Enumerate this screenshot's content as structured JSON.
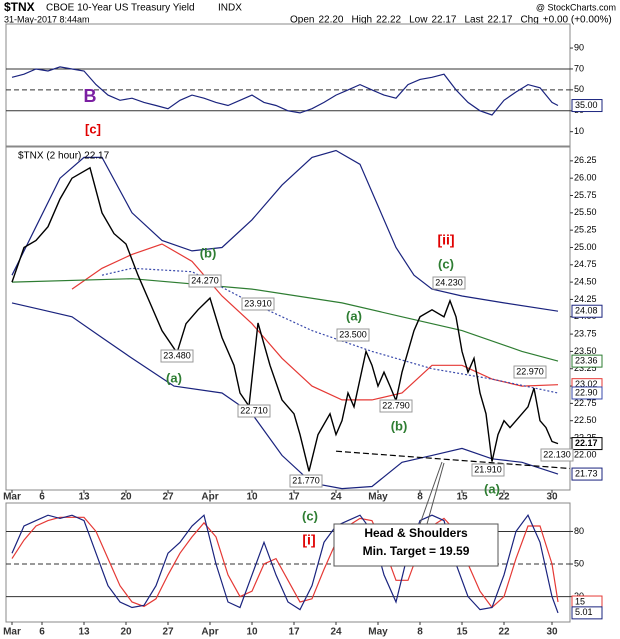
{
  "header": {
    "symbol": "$TNX",
    "name": "CBOE 10-Year US Treasury Yield",
    "exchange": "INDX",
    "brand": "@ StockCharts.com",
    "date": "31-May-2017 8:44am",
    "stats": [
      {
        "label": "Open",
        "value": "22.20"
      },
      {
        "label": "High",
        "value": "22.22"
      },
      {
        "label": "Low",
        "value": "22.17"
      },
      {
        "label": "Last",
        "value": "22.17"
      },
      {
        "label": "Chg",
        "value": "+0.00 (+0.00%)"
      }
    ]
  },
  "chart_data": [
    {
      "type": "line",
      "xlim": [
        -1,
        93
      ],
      "ylim": [
        -3.7,
        113
      ],
      "yticks": [
        10,
        30,
        50,
        70,
        90
      ],
      "reference_lines": [
        {
          "value": 70
        },
        {
          "value": 50,
          "dashed": true
        },
        {
          "value": 30
        }
      ],
      "series": [
        {
          "color": "#1a237e",
          "last_label": "35.00",
          "x": [
            0,
            2,
            4,
            6,
            8,
            10,
            12,
            14,
            16,
            18,
            20,
            22,
            24,
            26,
            28,
            30,
            32,
            34,
            36,
            38,
            40,
            42,
            44,
            46,
            48,
            50,
            52,
            54,
            56,
            58,
            60,
            62,
            64,
            66,
            68,
            70,
            72,
            74,
            76,
            78,
            80,
            82,
            84,
            86,
            88,
            90,
            91
          ],
          "values": [
            62,
            65,
            70,
            68,
            72,
            70,
            68,
            55,
            45,
            40,
            42,
            38,
            35,
            32,
            40,
            45,
            42,
            38,
            35,
            40,
            45,
            38,
            35,
            30,
            28,
            32,
            38,
            45,
            50,
            55,
            50,
            45,
            42,
            55,
            60,
            62,
            65,
            50,
            38,
            30,
            26,
            40,
            48,
            55,
            52,
            38,
            35
          ]
        }
      ],
      "annotations": [
        {
          "text": "B",
          "color": "#7b1fa2"
        },
        {
          "text": "[c]",
          "color": "#e00000"
        }
      ]
    },
    {
      "type": "line",
      "title": "$TNX (2 hour) 22.17",
      "xlim": [
        -1,
        93
      ],
      "ylim": [
        21.5,
        26.45
      ],
      "xticks": [
        {
          "value": 0,
          "label": "Mar"
        },
        {
          "value": 5,
          "label": "6"
        },
        {
          "value": 12,
          "label": "13"
        },
        {
          "value": 19,
          "label": "20"
        },
        {
          "value": 26,
          "label": "27"
        },
        {
          "value": 33,
          "label": "Apr"
        },
        {
          "value": 40,
          "label": "10"
        },
        {
          "value": 47,
          "label": "17"
        },
        {
          "value": 54,
          "label": "24"
        },
        {
          "value": 61,
          "label": "May"
        },
        {
          "value": 68,
          "label": "8"
        },
        {
          "value": 75,
          "label": "15"
        },
        {
          "value": 82,
          "label": "22"
        },
        {
          "value": 90,
          "label": "30"
        }
      ],
      "yticks": [
        {
          "value": 22,
          "label": "22.00"
        },
        {
          "value": 22.25,
          "label": "22.25"
        },
        {
          "value": 22.5,
          "label": "22.50"
        },
        {
          "value": 22.75,
          "label": "22.75"
        },
        {
          "value": 23,
          "label": "23.00"
        },
        {
          "value": 23.25,
          "label": "23.25"
        },
        {
          "value": 23.5,
          "label": "23.50"
        },
        {
          "value": 23.75,
          "label": "23.75"
        },
        {
          "value": 24,
          "label": "24.00"
        },
        {
          "value": 24.25,
          "label": "24.25"
        },
        {
          "value": 24.5,
          "label": "24.50"
        },
        {
          "value": 24.75,
          "label": "24.75"
        },
        {
          "value": 25,
          "label": "25.00"
        },
        {
          "value": 25.25,
          "label": "25.25"
        },
        {
          "value": 25.5,
          "label": "25.50"
        },
        {
          "value": 25.75,
          "label": "25.75"
        },
        {
          "value": 26,
          "label": "26.00"
        },
        {
          "value": 26.25,
          "label": "26.25"
        }
      ],
      "series": [
        {
          "color": "#1a237e",
          "x": [
            0,
            4,
            8,
            12,
            15,
            20,
            25,
            30,
            35,
            40,
            45,
            50,
            54,
            58,
            61,
            64,
            67,
            70,
            75,
            82,
            91
          ],
          "values": [
            24.6,
            25.3,
            26.0,
            26.3,
            26.3,
            25.5,
            25.1,
            24.95,
            25.0,
            25.4,
            25.9,
            26.3,
            26.4,
            26.2,
            25.6,
            25.0,
            24.6,
            24.4,
            24.3,
            24.2,
            24.08
          ]
        },
        {
          "color": "#1a237e",
          "x": [
            0,
            5,
            10,
            15,
            20,
            27,
            35,
            40,
            45,
            50,
            55,
            60,
            65,
            70,
            75,
            80,
            85,
            91
          ],
          "values": [
            24.2,
            24.1,
            24.0,
            23.7,
            23.4,
            23.0,
            22.9,
            22.6,
            22.0,
            21.6,
            21.52,
            21.55,
            21.9,
            22.0,
            22.1,
            21.95,
            21.9,
            21.73
          ]
        },
        {
          "color": "#e53935",
          "x": [
            10,
            15,
            20,
            25,
            30,
            35,
            40,
            45,
            50,
            55,
            60,
            65,
            70,
            75,
            80,
            85,
            91
          ],
          "values": [
            24.4,
            24.7,
            24.9,
            25.05,
            24.8,
            24.3,
            23.9,
            23.4,
            23.0,
            22.8,
            22.8,
            22.9,
            23.3,
            23.3,
            23.1,
            23.0,
            23.02
          ]
        },
        {
          "color": "#2e7d32",
          "x": [
            0,
            20,
            40,
            55,
            65,
            75,
            85,
            91
          ],
          "values": [
            24.5,
            24.55,
            24.4,
            24.2,
            24.0,
            23.8,
            23.5,
            23.36
          ]
        },
        {
          "color": "#3949ab",
          "dashed": true,
          "last_label": "22.90",
          "x": [
            15,
            20,
            30,
            40,
            50,
            60,
            70,
            80,
            91
          ],
          "values": [
            24.6,
            24.7,
            24.65,
            24.2,
            23.8,
            23.5,
            23.25,
            23.1,
            22.9
          ]
        },
        {
          "color": "#000000",
          "bold": true,
          "x": [
            0,
            2,
            4,
            6,
            8,
            10,
            13,
            15,
            17,
            19,
            21,
            23,
            25,
            27.5,
            29,
            31,
            33,
            35,
            37,
            38,
            39.5,
            41,
            43,
            45,
            47,
            48,
            49.5,
            51,
            53,
            54,
            55,
            56,
            57,
            58,
            59,
            60,
            61,
            62,
            63,
            64,
            65,
            66,
            67,
            68,
            70,
            72,
            73,
            74,
            75,
            76,
            77,
            78,
            79,
            80,
            81,
            82,
            83,
            84,
            86,
            87,
            88,
            89,
            90,
            91
          ],
          "values": [
            24.5,
            25.0,
            25.1,
            25.3,
            25.7,
            26.0,
            26.15,
            25.5,
            25.2,
            25.05,
            24.6,
            24.2,
            23.8,
            23.48,
            23.9,
            24.1,
            24.27,
            23.7,
            23.3,
            22.9,
            22.71,
            23.91,
            23.3,
            22.8,
            22.6,
            22.3,
            21.77,
            22.3,
            22.6,
            22.3,
            22.5,
            22.9,
            22.7,
            23.1,
            23.5,
            23.3,
            23.0,
            23.2,
            23.0,
            22.79,
            23.2,
            23.5,
            23.8,
            24.0,
            24.1,
            24.0,
            24.23,
            24.0,
            23.5,
            23.2,
            23.4,
            22.9,
            22.6,
            21.91,
            22.3,
            22.5,
            22.4,
            22.5,
            22.7,
            22.97,
            22.5,
            22.4,
            22.2,
            22.17
          ]
        },
        {
          "color": "#000000",
          "dashed": true,
          "trend": true,
          "x": [
            54,
            93
          ],
          "values": [
            22.06,
            21.81
          ]
        }
      ],
      "annotations": [
        {
          "text": "(b)",
          "color": "#2e7d32"
        },
        {
          "text": "24.270",
          "box": true
        },
        {
          "text": "23.910",
          "box": true
        },
        {
          "text": "23.480",
          "box": true
        },
        {
          "text": "(a)",
          "color": "#2e7d32"
        },
        {
          "text": "22.710",
          "box": true
        },
        {
          "text": "21.770",
          "box": true
        },
        {
          "text": "(a)",
          "color": "#2e7d32"
        },
        {
          "text": "23.500",
          "box": true
        },
        {
          "text": "22.790",
          "box": true
        },
        {
          "text": "(b)",
          "color": "#2e7d32"
        },
        {
          "text": "[ii]",
          "color": "#e00000"
        },
        {
          "text": "(c)",
          "color": "#2e7d32"
        },
        {
          "text": "24.230",
          "box": true
        },
        {
          "text": "22.970",
          "box": true
        },
        {
          "text": "21.910",
          "box": true
        },
        {
          "text": "22.130",
          "box": true
        },
        {
          "text": "(a)",
          "color": "#2e7d32"
        }
      ]
    },
    {
      "type": "line",
      "xlim": [
        -1,
        93
      ],
      "ylim": [
        -3.4,
        106.2
      ],
      "yticks": [
        20,
        50,
        80
      ],
      "xticks": [
        {
          "value": 0,
          "label": "Mar"
        },
        {
          "value": 5,
          "label": "6"
        },
        {
          "value": 12,
          "label": "13"
        },
        {
          "value": 19,
          "label": "20"
        },
        {
          "value": 26,
          "label": "27"
        },
        {
          "value": 33,
          "label": "Apr"
        },
        {
          "value": 40,
          "label": "10"
        },
        {
          "value": 47,
          "label": "17"
        },
        {
          "value": 54,
          "label": "24"
        },
        {
          "value": 61,
          "label": "May"
        },
        {
          "value": 68,
          "label": "8"
        },
        {
          "value": 75,
          "label": "15"
        },
        {
          "value": 82,
          "label": "22"
        },
        {
          "value": 90,
          "label": "30"
        }
      ],
      "reference_lines": [
        {
          "value": 80
        },
        {
          "value": 50,
          "dashed": true
        },
        {
          "value": 20
        }
      ],
      "series": [
        {
          "color": "#e53935",
          "x": [
            0,
            2,
            4,
            6,
            8,
            10,
            12,
            14,
            16,
            18,
            20,
            22,
            24,
            26,
            28,
            30,
            32,
            34,
            36,
            38,
            40,
            42,
            44,
            46,
            48,
            50,
            52,
            54,
            56,
            58,
            60,
            62,
            64,
            66,
            68,
            70,
            72,
            74,
            76,
            78,
            80,
            82,
            84,
            86,
            88,
            90,
            91
          ],
          "values": [
            55,
            72,
            85,
            90,
            93,
            93,
            93,
            80,
            55,
            30,
            15,
            11,
            18,
            40,
            60,
            75,
            88,
            75,
            40,
            20,
            25,
            50,
            55,
            35,
            15,
            18,
            45,
            70,
            85,
            92,
            90,
            65,
            35,
            35,
            65,
            85,
            92,
            80,
            50,
            25,
            10,
            20,
            55,
            85,
            85,
            50,
            15
          ]
        },
        {
          "color": "#1a237e",
          "x": [
            0,
            2,
            4,
            6,
            8,
            10,
            12,
            14,
            16,
            18,
            20,
            22,
            24,
            26,
            28,
            30,
            32,
            34,
            36,
            38,
            40,
            42,
            44,
            46,
            48,
            50,
            52,
            54,
            56,
            58,
            60,
            62,
            64,
            66,
            68,
            70,
            72,
            74,
            76,
            78,
            80,
            82,
            84,
            86,
            88,
            90,
            91
          ],
          "values": [
            60,
            85,
            90,
            95,
            92,
            95,
            90,
            60,
            30,
            15,
            10,
            12,
            30,
            60,
            70,
            85,
            95,
            50,
            15,
            10,
            40,
            70,
            40,
            15,
            8,
            30,
            70,
            85,
            90,
            95,
            80,
            40,
            15,
            60,
            90,
            95,
            90,
            50,
            20,
            8,
            10,
            40,
            80,
            95,
            70,
            20,
            5.01
          ]
        }
      ],
      "annotations": [
        {
          "text": "(c)",
          "color": "#2e7d32"
        },
        {
          "text": "[i]",
          "color": "#e00000"
        },
        {
          "text": "Head & Shoulders",
          "box": true
        },
        {
          "text": "Min. Target = 19.59",
          "box": true
        }
      ]
    }
  ]
}
